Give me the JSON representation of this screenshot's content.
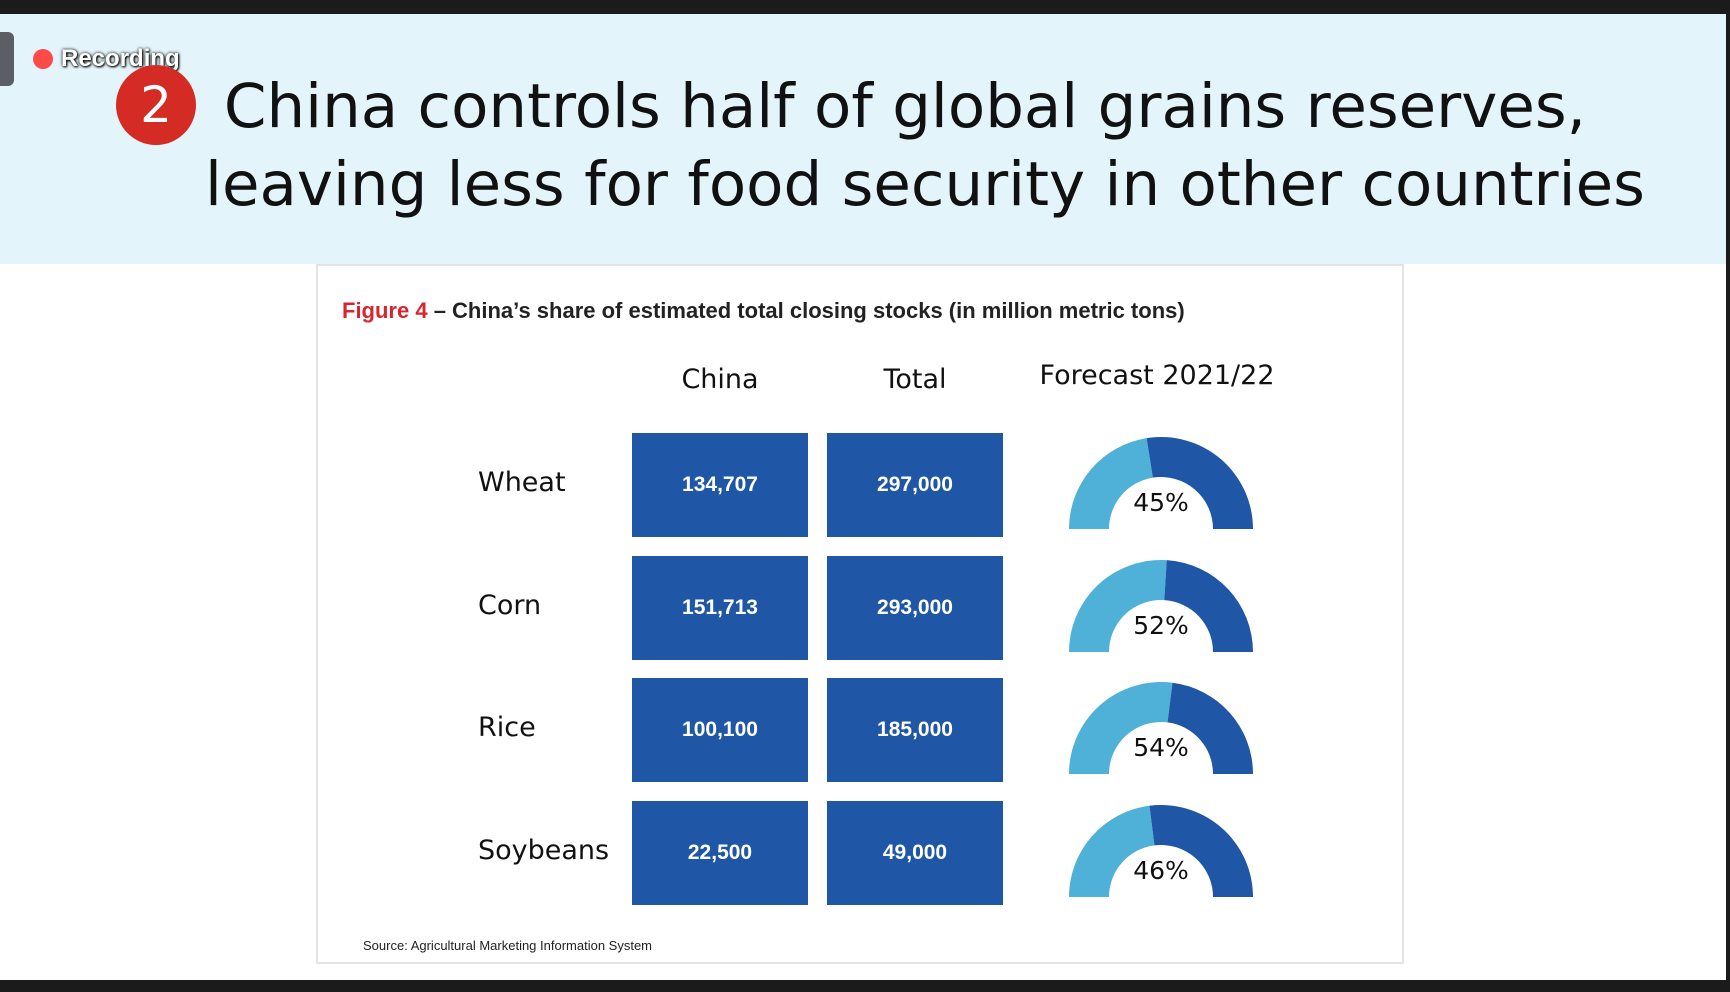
{
  "recording": {
    "label": "Recording"
  },
  "badge": {
    "number": "2"
  },
  "slide": {
    "title_line1": "China controls half of global grains reserves,",
    "title_line2": "leaving less for food security in other countries"
  },
  "figure": {
    "number": "Figure 4",
    "caption": " – China’s share of estimated total closing stocks (in million metric tons)",
    "col_china": "China",
    "col_total": "Total",
    "col_forecast": "Forecast 2021/22",
    "source": "Source: Agricultural Marketing Information System"
  },
  "rows": [
    {
      "label": "Wheat",
      "china": "134,707",
      "total": "297,000",
      "forecast": "45%"
    },
    {
      "label": "Corn",
      "china": "151,713",
      "total": "293,000",
      "forecast": "52%"
    },
    {
      "label": "Rice",
      "china": "100,100",
      "total": "185,000",
      "forecast": "54%"
    },
    {
      "label": "Soybeans",
      "china": "22,500",
      "total": "49,000",
      "forecast": "46%"
    }
  ],
  "chart_data": {
    "type": "table",
    "title": "Figure 4 – China’s share of estimated total closing stocks (in million metric tons)",
    "columns": [
      "China",
      "Total",
      "Forecast 2021/22"
    ],
    "categories": [
      "Wheat",
      "Corn",
      "Rice",
      "Soybeans"
    ],
    "series": [
      {
        "name": "China",
        "values": [
          134707,
          151713,
          100100,
          22500
        ]
      },
      {
        "name": "Total",
        "values": [
          297000,
          293000,
          185000,
          49000
        ]
      },
      {
        "name": "Forecast 2021/22 share (%)",
        "values": [
          45,
          52,
          54,
          46
        ]
      }
    ]
  },
  "colors": {
    "banner": "#e3f4fb",
    "cell": "#1f56a5",
    "gauge_light": "#4fb0d8",
    "gauge_dark": "#1f56a5",
    "figure_number": "#d7262e",
    "badge": "#d42b24"
  }
}
